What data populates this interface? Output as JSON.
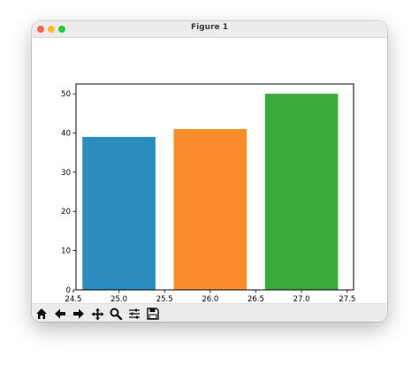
{
  "window": {
    "title": "Figure 1"
  },
  "toolbar": {
    "icons": [
      "home-icon",
      "back-arrow-icon",
      "forward-arrow-icon",
      "pan-move-icon",
      "zoom-magnifier-icon",
      "configure-subplots-icon",
      "save-floppy-icon"
    ]
  },
  "chart_data": {
    "type": "bar",
    "title": "",
    "xlabel": "",
    "ylabel": "",
    "x": [
      25.0,
      26.0,
      27.0
    ],
    "values": [
      39,
      41,
      50
    ],
    "bar_width": 0.8,
    "colors": [
      "#2b8cbe",
      "#fd8d2c",
      "#3aaa3d"
    ],
    "xlim": [
      24.53,
      27.57
    ],
    "ylim": [
      0,
      52.5
    ],
    "xticks": [
      "24.5",
      "25.0",
      "25.5",
      "26.0",
      "26.5",
      "27.0",
      "27.5"
    ],
    "yticks": [
      "0",
      "10",
      "20",
      "30",
      "40",
      "50"
    ],
    "grid": false
  }
}
